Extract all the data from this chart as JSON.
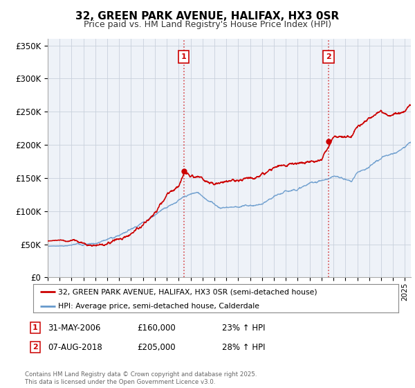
{
  "title": "32, GREEN PARK AVENUE, HALIFAX, HX3 0SR",
  "subtitle": "Price paid vs. HM Land Registry's House Price Index (HPI)",
  "ylabel_ticks": [
    "£0",
    "£50K",
    "£100K",
    "£150K",
    "£200K",
    "£250K",
    "£300K",
    "£350K"
  ],
  "ytick_vals": [
    0,
    50000,
    100000,
    150000,
    200000,
    250000,
    300000,
    350000
  ],
  "ylim": [
    0,
    360000
  ],
  "xlim_start": 1995.0,
  "xlim_end": 2025.5,
  "red_color": "#cc0000",
  "blue_color": "#6699cc",
  "chart_bg": "#eef2f8",
  "sale1_x": 2006.42,
  "sale1_y": 160000,
  "sale2_x": 2018.59,
  "sale2_y": 205000,
  "legend_line1": "32, GREEN PARK AVENUE, HALIFAX, HX3 0SR (semi-detached house)",
  "legend_line2": "HPI: Average price, semi-detached house, Calderdale",
  "footer": "Contains HM Land Registry data © Crown copyright and database right 2025.\nThis data is licensed under the Open Government Licence v3.0.",
  "background_color": "#ffffff",
  "grid_color": "#c8d0dc"
}
